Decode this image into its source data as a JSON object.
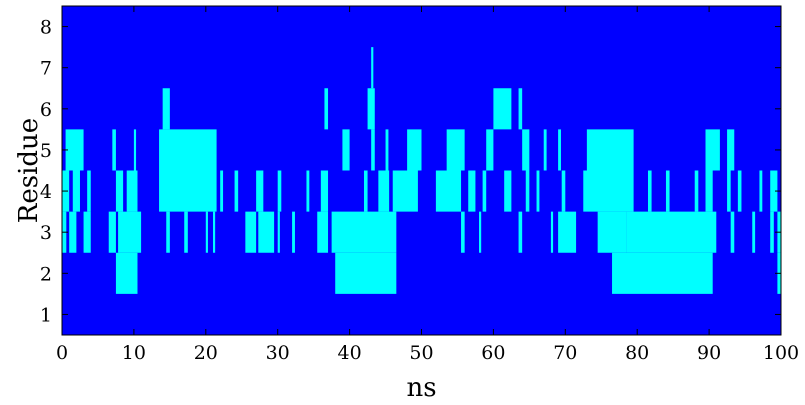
{
  "chart_data": {
    "type": "heatmap",
    "title": "",
    "xlabel": "ns",
    "ylabel": "Residue",
    "xlim": [
      0,
      100
    ],
    "ylim": [
      0.5,
      8.5
    ],
    "xticks": [
      0,
      10,
      20,
      30,
      40,
      50,
      60,
      70,
      80,
      90,
      100
    ],
    "yticks": [
      1,
      2,
      3,
      4,
      5,
      6,
      7,
      8
    ],
    "grid": false,
    "legend": "none",
    "colors": {
      "background": "#0000ff",
      "occupied": "#00ffff"
    },
    "occupancy": [
      {
        "residue": 2,
        "intervals": [
          [
            7.5,
            10.5
          ],
          [
            38.0,
            46.5
          ],
          [
            76.5,
            90.5
          ],
          [
            99.5,
            100
          ]
        ]
      },
      {
        "residue": 3,
        "intervals": [
          [
            0,
            0.6
          ],
          [
            1.0,
            2.0
          ],
          [
            3.0,
            4.0
          ],
          [
            6.5,
            7.5
          ],
          [
            7.8,
            11.0
          ],
          [
            14.5,
            15.0
          ],
          [
            17.0,
            17.5
          ],
          [
            20.0,
            20.3
          ],
          [
            21.0,
            21.3
          ],
          [
            25.5,
            27.0
          ],
          [
            27.3,
            29.5
          ],
          [
            30.0,
            30.3
          ],
          [
            32.0,
            32.4
          ],
          [
            35.5,
            37.0
          ],
          [
            37.5,
            46.5
          ],
          [
            55.5,
            56.0
          ],
          [
            58.0,
            58.3
          ],
          [
            63.5,
            64.0
          ],
          [
            68.0,
            68.3
          ],
          [
            69.0,
            71.5
          ],
          [
            74.5,
            78.5
          ],
          [
            78.5,
            91.0
          ],
          [
            93.0,
            93.5
          ],
          [
            96.0,
            96.4
          ],
          [
            98.5,
            99.0
          ],
          [
            99.5,
            100
          ]
        ]
      },
      {
        "residue": 4,
        "intervals": [
          [
            0,
            1.0
          ],
          [
            1.5,
            2.5
          ],
          [
            3.5,
            4.0
          ],
          [
            7.5,
            8.5
          ],
          [
            9.0,
            10.5
          ],
          [
            13.5,
            21.5
          ],
          [
            22.0,
            22.4
          ],
          [
            24.0,
            24.5
          ],
          [
            27.0,
            28.0
          ],
          [
            30.0,
            30.5
          ],
          [
            34.0,
            34.4
          ],
          [
            36.0,
            37.0
          ],
          [
            42.0,
            42.5
          ],
          [
            44.0,
            45.5
          ],
          [
            46.0,
            49.5
          ],
          [
            52.0,
            55.5
          ],
          [
            56.5,
            57.5
          ],
          [
            58.5,
            59.0
          ],
          [
            61.5,
            62.5
          ],
          [
            64.5,
            65.0
          ],
          [
            66.0,
            66.4
          ],
          [
            69.5,
            70.0
          ],
          [
            72.5,
            79.5
          ],
          [
            81.5,
            82.0
          ],
          [
            84.0,
            84.5
          ],
          [
            88.0,
            88.5
          ],
          [
            89.5,
            90.5
          ],
          [
            92.5,
            93.0
          ],
          [
            94.0,
            94.5
          ],
          [
            97.0,
            97.4
          ],
          [
            98.5,
            99.5
          ]
        ]
      },
      {
        "residue": 5,
        "intervals": [
          [
            0.5,
            3.0
          ],
          [
            7.0,
            7.5
          ],
          [
            10.0,
            10.3
          ],
          [
            13.5,
            21.5
          ],
          [
            39.0,
            40.0
          ],
          [
            43.0,
            43.5
          ],
          [
            45.0,
            45.4
          ],
          [
            48.0,
            50.0
          ],
          [
            53.5,
            56.0
          ],
          [
            59.0,
            60.0
          ],
          [
            64.0,
            65.0
          ],
          [
            67.0,
            67.4
          ],
          [
            69.0,
            69.4
          ],
          [
            73.0,
            79.5
          ],
          [
            89.5,
            91.5
          ],
          [
            92.5,
            93.5
          ]
        ]
      },
      {
        "residue": 6,
        "intervals": [
          [
            14.0,
            15.0
          ],
          [
            36.5,
            37.0
          ],
          [
            42.5,
            43.5
          ],
          [
            60.0,
            62.5
          ],
          [
            63.5,
            64.0
          ]
        ]
      },
      {
        "residue": 7,
        "intervals": [
          [
            43.0,
            43.3
          ]
        ]
      }
    ]
  }
}
